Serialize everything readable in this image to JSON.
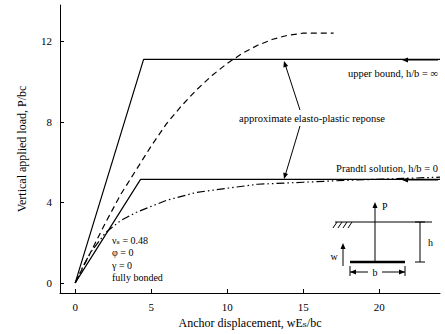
{
  "chart_data": {
    "type": "line",
    "xlabel": "Anchor displacement, wEₛ/bc",
    "ylabel": "Vertical applied load, P/bc",
    "xlim": [
      -1,
      24
    ],
    "xticks": [
      0,
      5,
      10,
      15,
      20
    ],
    "ylim": [
      -0.5,
      13.8
    ],
    "yticks": [
      0,
      4,
      8,
      12
    ],
    "grid": false,
    "series": [
      {
        "color": "#000000",
        "line_style": "solid",
        "x": [
          0,
          4.5,
          24
        ],
        "values": [
          0,
          11.1,
          11.1
        ]
      },
      {
        "color": "#000000",
        "line_style": "solid",
        "x": [
          0,
          4.3,
          24
        ],
        "values": [
          0,
          5.14,
          5.14
        ]
      },
      {
        "color": "#000000",
        "line_style": "dashed",
        "x": [
          0,
          1,
          2,
          3,
          4,
          5,
          6,
          7,
          8,
          9,
          10,
          11,
          12,
          13,
          14,
          15,
          16,
          17
        ],
        "values": [
          0,
          1.5,
          3.0,
          4.4,
          5.6,
          6.8,
          7.9,
          8.8,
          9.6,
          10.3,
          10.9,
          11.4,
          11.8,
          12.1,
          12.3,
          12.4,
          12.4,
          12.4
        ]
      },
      {
        "color": "#000000",
        "line_style": "dashdot",
        "x": [
          0,
          0.5,
          1,
          2,
          3,
          4,
          5,
          6,
          8,
          10,
          12,
          15,
          18,
          22,
          24
        ],
        "values": [
          0,
          0.8,
          1.5,
          2.5,
          3.1,
          3.5,
          3.8,
          4.1,
          4.5,
          4.7,
          4.9,
          5.0,
          5.1,
          5.2,
          5.25
        ]
      }
    ],
    "annotations": [
      "upper bound, h/b = ∞",
      "approximate elasto-plastic reponse",
      "Prandtl solution, h/b = 0"
    ],
    "parameters": [
      "νₛ = 0.48",
      "φ = 0",
      "γ = 0",
      "fully bonded"
    ],
    "inset_labels": [
      "P",
      "w",
      "h",
      "b"
    ]
  }
}
